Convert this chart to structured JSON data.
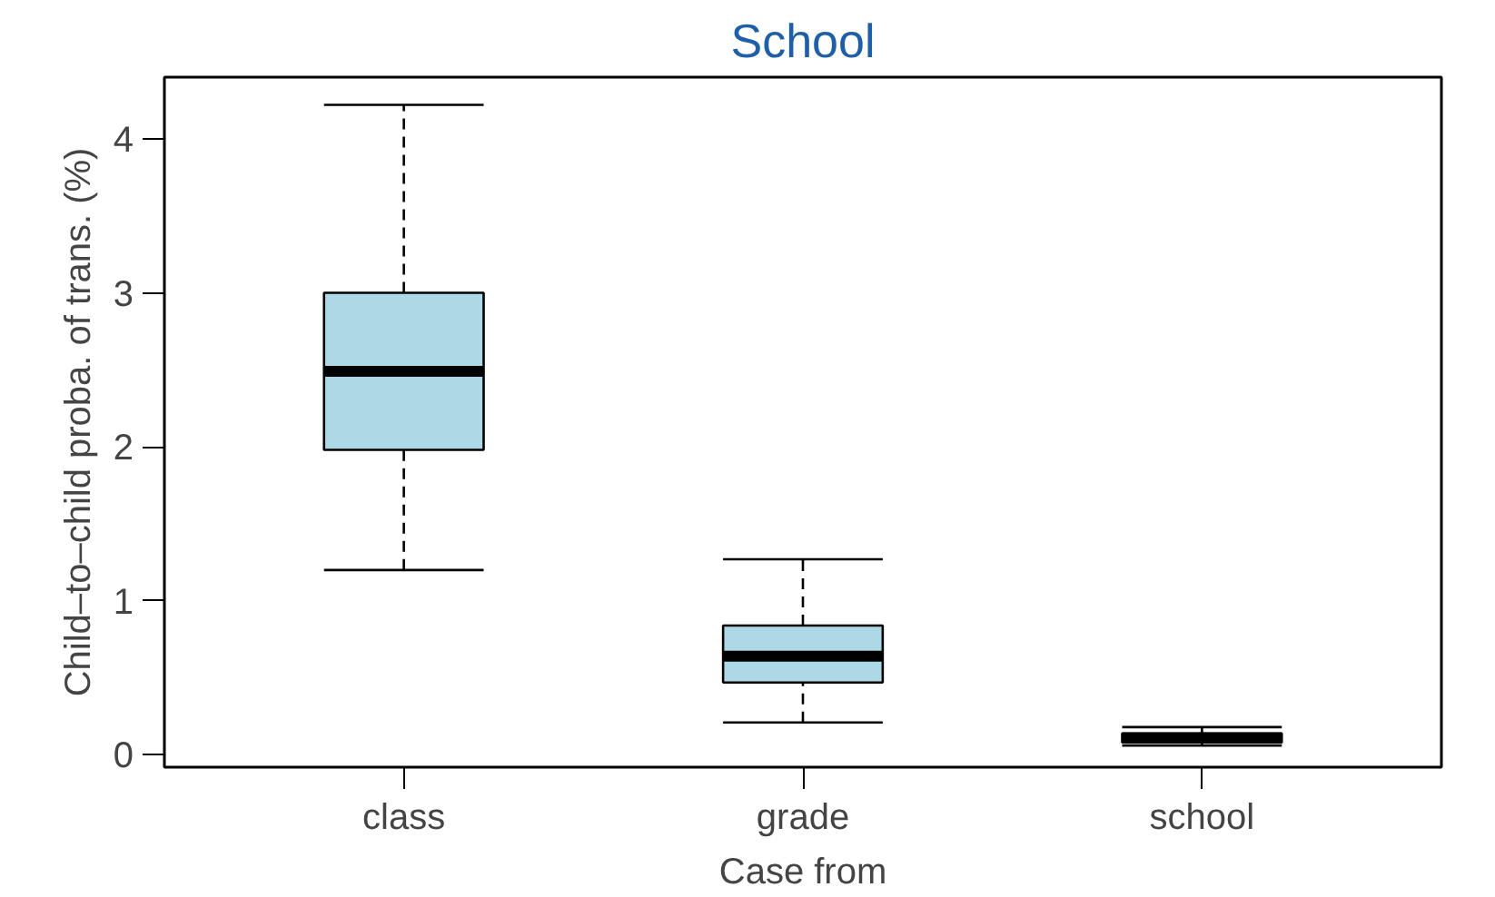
{
  "chart_data": {
    "type": "box",
    "title": "School",
    "xlabel": "Case from",
    "ylabel": "Child–to–child proba. of trans. (%)",
    "categories": [
      "class",
      "grade",
      "school"
    ],
    "boxes": [
      {
        "low": 1.2,
        "q1": 1.98,
        "median": 2.49,
        "q3": 3.0,
        "high": 4.22
      },
      {
        "low": 0.21,
        "q1": 0.47,
        "median": 0.64,
        "q3": 0.84,
        "high": 1.27
      },
      {
        "low": 0.06,
        "q1": 0.08,
        "median": 0.11,
        "q3": 0.14,
        "high": 0.18
      }
    ],
    "color": "#add8e6",
    "ylim": [
      -0.08,
      4.4
    ],
    "yticks": [
      0,
      1,
      2,
      3,
      4
    ],
    "grid": false,
    "line_style": "dashed"
  }
}
